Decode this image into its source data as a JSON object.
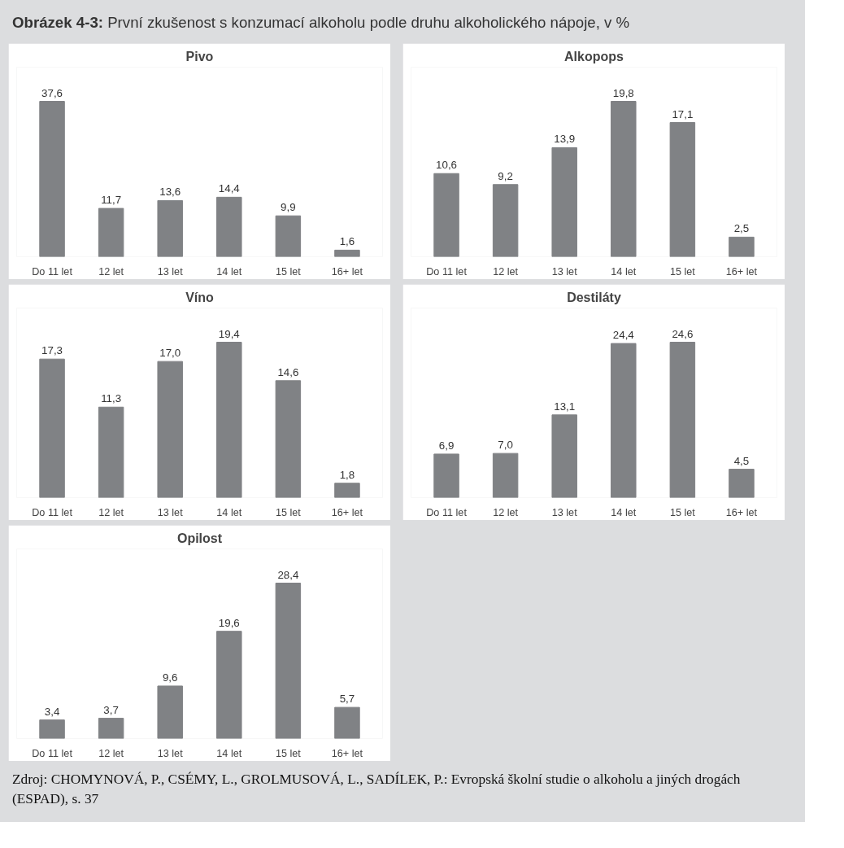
{
  "chart_data": [
    {
      "type": "bar",
      "title": "Pivo",
      "categories": [
        "Do 11 let",
        "12 let",
        "13 let",
        "14 let",
        "15 let",
        "16+ let"
      ],
      "values": [
        37.6,
        11.7,
        13.6,
        14.4,
        9.9,
        1.6
      ],
      "value_labels": [
        "37,6",
        "11,7",
        "13,6",
        "14,4",
        "9,9",
        "1,6"
      ],
      "color": "#808285",
      "tick_labels": "x",
      "annotations": [
        "Obrázek 4-3: První zkušenost s konzumací alkoholu podle druhu alkoholického nápoje, v %"
      ]
    },
    {
      "type": "bar",
      "title": "Alkopops",
      "categories": [
        "Do 11 let",
        "12 let",
        "13 let",
        "14 let",
        "15 let",
        "16+ let"
      ],
      "values": [
        10.6,
        9.2,
        13.9,
        19.8,
        17.1,
        2.5
      ],
      "value_labels": [
        "10,6",
        "9,2",
        "13,9",
        "19,8",
        "17,1",
        "2,5"
      ],
      "color": "#808285",
      "tick_labels": "x"
    },
    {
      "type": "bar",
      "title": "Víno",
      "categories": [
        "Do 11 let",
        "12 let",
        "13 let",
        "14 let",
        "15 let",
        "16+ let"
      ],
      "values": [
        17.3,
        11.3,
        17.0,
        19.4,
        14.6,
        1.8
      ],
      "value_labels": [
        "17,3",
        "11,3",
        "17,0",
        "19,4",
        "14,6",
        "1,8"
      ],
      "color": "#808285",
      "tick_labels": "x"
    },
    {
      "type": "bar",
      "title": "Destiláty",
      "categories": [
        "Do 11 let",
        "12 let",
        "13 let",
        "14 let",
        "15 let",
        "16+ let"
      ],
      "values": [
        6.9,
        7.0,
        13.1,
        24.4,
        24.6,
        4.5
      ],
      "value_labels": [
        "6,9",
        "7,0",
        "13,1",
        "24,4",
        "24,6",
        "4,5"
      ],
      "color": "#808285",
      "tick_labels": "x"
    },
    {
      "type": "bar",
      "title": "Opilost",
      "categories": [
        "Do 11 let",
        "12 let",
        "13 let",
        "14 let",
        "15 let",
        "16+ let"
      ],
      "values": [
        3.4,
        3.7,
        9.6,
        19.6,
        28.4,
        5.7
      ],
      "value_labels": [
        "3,4",
        "3,7",
        "9,6",
        "19,6",
        "28,4",
        "5,7"
      ],
      "color": "#808285",
      "tick_labels": "x",
      "annotations": [
        "Zdroj: CHOMYNOVÁ, P., CSÉMY, L., GROLMUSOVÁ, L., SADÍLEK, P.: Evropská školní studie o alkoholu a jiných drogách (ESPAD), s. 37"
      ]
    }
  ]
}
